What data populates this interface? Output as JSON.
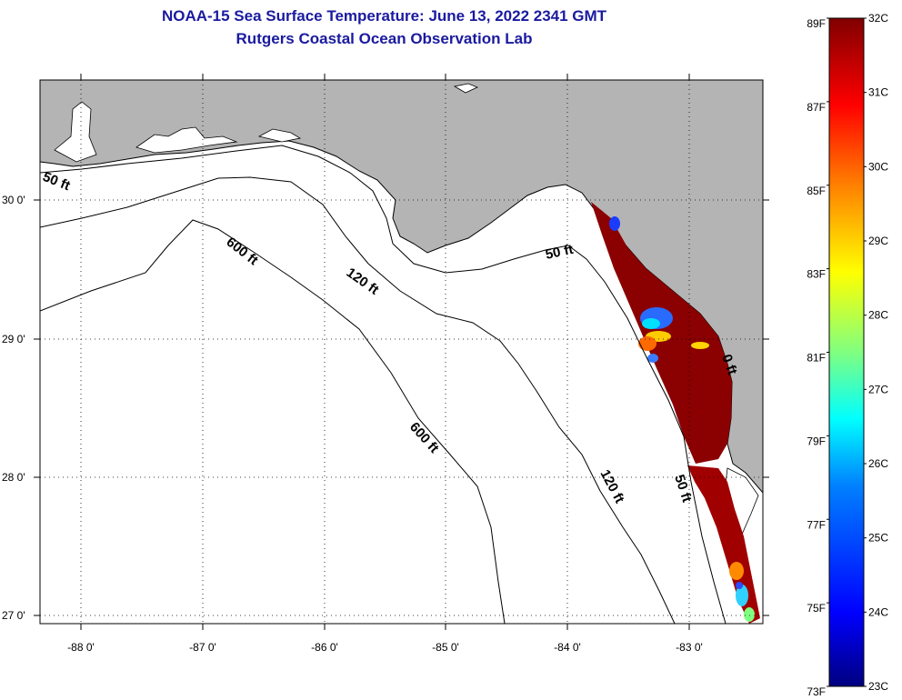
{
  "title": {
    "line1": "NOAA-15 Sea Surface Temperature:  June 13, 2022 2341 GMT",
    "line2": "Rutgers Coastal Ocean Observation Lab"
  },
  "map": {
    "lat_ticks": [
      "30 0'",
      "29 0'",
      "28 0'",
      "27 0'"
    ],
    "lon_ticks": [
      "-88 0'",
      "-87 0'",
      "-86 0'",
      "-85 0'",
      "-84 0'",
      "-83 0'"
    ],
    "land_color": "#b4b4b4",
    "ocean_color": "#ffffff",
    "contour_labels": [
      "50 ft",
      "600 ft",
      "120 ft",
      "50 ft",
      "0 ft",
      "600 ft",
      "120 ft",
      "50 ft"
    ]
  },
  "colorbar": {
    "fahrenheit": [
      "89F",
      "87F",
      "85F",
      "83F",
      "81F",
      "79F",
      "77F",
      "75F",
      "73F"
    ],
    "celsius": [
      "32C",
      "31C",
      "30C",
      "29C",
      "28C",
      "27C",
      "26C",
      "25C",
      "24C",
      "23C"
    ],
    "colors": [
      "#000080",
      "#0000ff",
      "#0080ff",
      "#00ffff",
      "#80ff80",
      "#ffff00",
      "#ff8000",
      "#ff0000",
      "#800000"
    ]
  }
}
